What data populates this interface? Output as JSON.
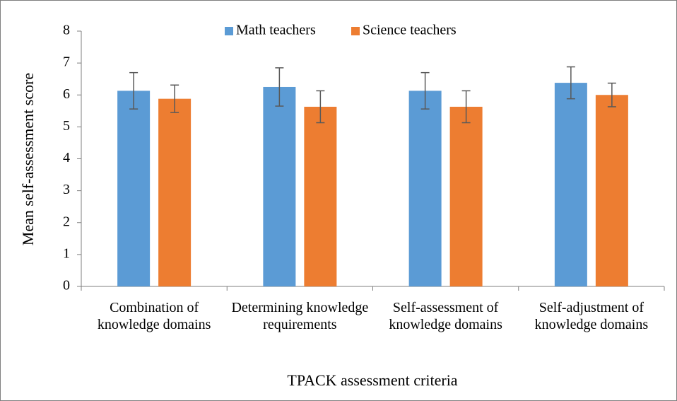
{
  "chart_data": {
    "type": "bar",
    "xlabel": "TPACK assessment criteria",
    "ylabel": "Mean self-assessment score",
    "categories": [
      "Combination of knowledge domains",
      "Determining knowledge requirements",
      "Self-assessment of knowledge domains",
      "Self-adjustment of knowledge domains"
    ],
    "series": [
      {
        "name": "Math teachers",
        "color": "#5b9bd5",
        "values": [
          6.13,
          6.25,
          6.13,
          6.38
        ],
        "errors": [
          0.57,
          0.6,
          0.57,
          0.5
        ]
      },
      {
        "name": "Science teachers",
        "color": "#ed7d31",
        "values": [
          5.88,
          5.63,
          5.63,
          6.0
        ],
        "errors": [
          0.43,
          0.5,
          0.5,
          0.37
        ]
      }
    ],
    "ylim": [
      0,
      8
    ],
    "yticks": [
      0,
      1,
      2,
      3,
      4,
      5,
      6,
      7,
      8
    ],
    "legend": "top"
  }
}
